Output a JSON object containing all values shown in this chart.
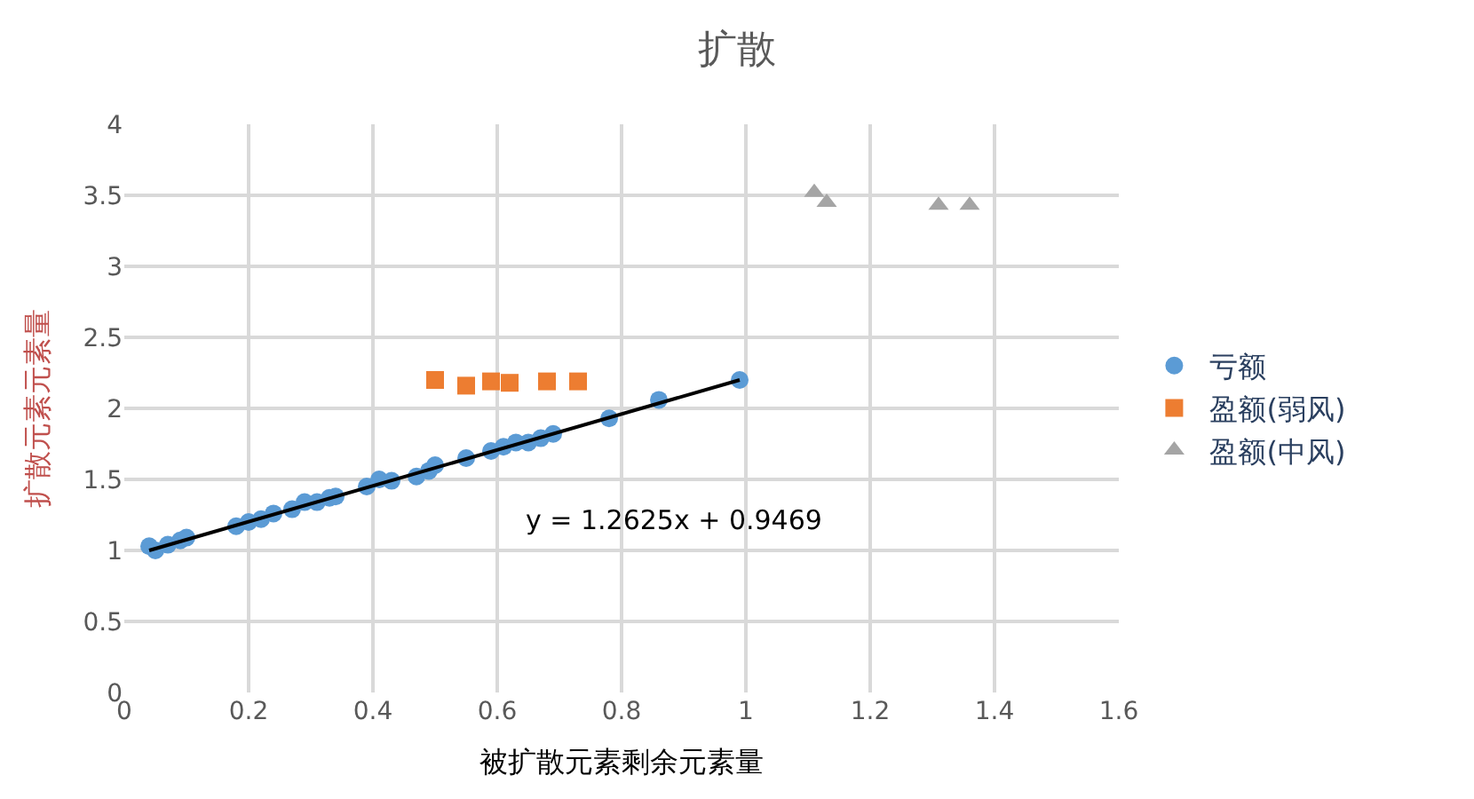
{
  "chart_data": {
    "type": "scatter",
    "title": "扩散",
    "xlabel": "被扩散元素剩余元素量",
    "ylabel": "扩散元素元素量",
    "xlim": [
      0,
      1.6
    ],
    "xticks": [
      0,
      0.2,
      0.4,
      0.6,
      0.8,
      1,
      1.2,
      1.4,
      1.6
    ],
    "ylim": [
      0,
      4
    ],
    "yticks": [
      0,
      0.5,
      1,
      1.5,
      2,
      2.5,
      3,
      3.5,
      4
    ],
    "grid": true,
    "legend": "right",
    "series": [
      {
        "name": "亏额",
        "color": "#5b9bd5",
        "marker": "circle",
        "x": [
          0.04,
          0.05,
          0.07,
          0.09,
          0.1,
          0.18,
          0.2,
          0.22,
          0.24,
          0.27,
          0.29,
          0.31,
          0.33,
          0.34,
          0.39,
          0.41,
          0.43,
          0.47,
          0.49,
          0.5,
          0.55,
          0.59,
          0.61,
          0.63,
          0.65,
          0.67,
          0.69,
          0.78,
          0.86,
          0.99
        ],
        "values": [
          1.03,
          1.0,
          1.04,
          1.07,
          1.09,
          1.17,
          1.2,
          1.22,
          1.26,
          1.29,
          1.34,
          1.34,
          1.37,
          1.38,
          1.45,
          1.5,
          1.49,
          1.52,
          1.56,
          1.6,
          1.65,
          1.7,
          1.73,
          1.76,
          1.76,
          1.79,
          1.82,
          1.93,
          2.06,
          2.2
        ]
      },
      {
        "name": "盈额(弱风)",
        "color": "#ed7d31",
        "marker": "square",
        "x": [
          0.5,
          0.55,
          0.59,
          0.62,
          0.68,
          0.73
        ],
        "values": [
          2.2,
          2.16,
          2.19,
          2.18,
          2.19,
          2.19
        ]
      },
      {
        "name": "盈额(中风)",
        "color": "#a5a5a5",
        "marker": "triangle",
        "x": [
          1.11,
          1.13,
          1.31,
          1.36
        ],
        "values": [
          3.52,
          3.45,
          3.43,
          3.43
        ]
      },
      {
        "type": "line",
        "color": "#000000",
        "marker": "none",
        "line_style": "solid",
        "x": [
          0.04,
          0.99
        ],
        "values": [
          1.0,
          2.2
        ]
      }
    ],
    "annotations": [
      "y = 1.2625x + 0.9469"
    ]
  }
}
